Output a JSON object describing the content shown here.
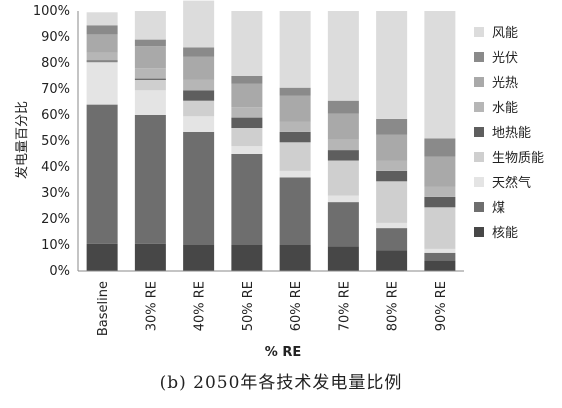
{
  "caption": "(b) 2050年各技术发电量比例",
  "colors": {
    "风能": "#dcdcdc",
    "光伏": "#8a8a8a",
    "光热": "#a9a9a9",
    "水能": "#b6b6b6",
    "地热能": "#5e5e5e",
    "生物质能": "#cfcfcf",
    "天然气": "#e4e4e4",
    "煤": "#6e6e6e",
    "核能": "#474747"
  },
  "chart_data": {
    "type": "bar",
    "stacked": true,
    "title": "",
    "xlabel": "% RE",
    "ylabel": "发电量百分比",
    "ylim": [
      0,
      100
    ],
    "yticks": [
      "0%",
      "10%",
      "20%",
      "30%",
      "40%",
      "50%",
      "60%",
      "70%",
      "80%",
      "90%",
      "100%"
    ],
    "grid": false,
    "legend": "right",
    "categories": [
      "Baseline",
      "30% RE",
      "40% RE",
      "50% RE",
      "60% RE",
      "70% RE",
      "80% RE",
      "90% RE"
    ],
    "series": [
      {
        "name": "核能",
        "values": [
          10.5,
          10.5,
          10,
          10,
          10,
          9.5,
          8,
          4
        ]
      },
      {
        "name": "煤",
        "values": [
          53.5,
          49.5,
          43.5,
          35,
          26,
          17,
          8.5,
          3
        ]
      },
      {
        "name": "天然气",
        "values": [
          16,
          9.5,
          6,
          3,
          2.5,
          2.5,
          2,
          1.5
        ]
      },
      {
        "name": "生物质能",
        "values": [
          0.5,
          4,
          6,
          7,
          11,
          13.5,
          16,
          16
        ]
      },
      {
        "name": "地热能",
        "values": [
          0.5,
          0.5,
          4,
          4,
          4,
          4,
          4,
          4
        ]
      },
      {
        "name": "水能",
        "values": [
          3,
          4,
          4,
          4,
          4,
          4,
          4,
          4
        ]
      },
      {
        "name": "光热",
        "values": [
          7,
          8.5,
          9,
          9,
          10,
          10,
          10,
          11.5
        ]
      },
      {
        "name": "光伏",
        "values": [
          3.5,
          2.5,
          3.5,
          3,
          3,
          5,
          6,
          7
        ]
      },
      {
        "name": "风能",
        "values": [
          5,
          11,
          18,
          25,
          29.5,
          34.5,
          41.5,
          49
        ]
      }
    ]
  }
}
